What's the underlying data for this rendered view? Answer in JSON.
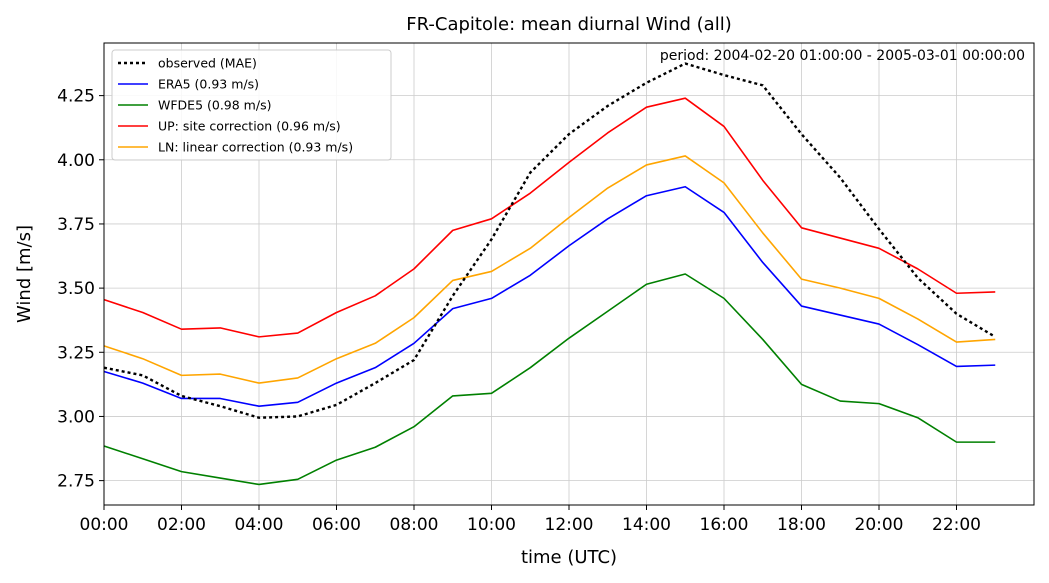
{
  "chart_data": {
    "type": "line",
    "title": "FR-Capitole: mean diurnal Wind (all)",
    "xlabel": "time (UTC)",
    "ylabel": "Wind [m/s]",
    "annotation": "period: 2004-02-20 01:00:00 - 2005-03-01 00:00:00",
    "x": [
      0,
      1,
      2,
      3,
      4,
      5,
      6,
      7,
      8,
      9,
      10,
      11,
      12,
      13,
      14,
      15,
      16,
      17,
      18,
      19,
      20,
      21,
      22,
      23
    ],
    "xlim": [
      0,
      24
    ],
    "ylim": [
      2.655,
      4.455
    ],
    "x_ticks": [
      0,
      2,
      4,
      6,
      8,
      10,
      12,
      14,
      16,
      18,
      20,
      22
    ],
    "x_tick_labels": [
      "00:00",
      "02:00",
      "04:00",
      "06:00",
      "08:00",
      "10:00",
      "12:00",
      "14:00",
      "16:00",
      "18:00",
      "20:00",
      "22:00"
    ],
    "y_ticks": [
      2.75,
      3.0,
      3.25,
      3.5,
      3.75,
      4.0,
      4.25
    ],
    "y_tick_labels": [
      "2.75",
      "3.00",
      "3.25",
      "3.50",
      "3.75",
      "4.00",
      "4.25"
    ],
    "grid": true,
    "legend_position": "top-left",
    "series": [
      {
        "name": "observed (MAE)",
        "color": "#000000",
        "style": "dotted",
        "values": [
          3.19,
          3.16,
          3.08,
          3.04,
          2.995,
          3.0,
          3.045,
          3.13,
          3.22,
          3.47,
          3.69,
          3.95,
          4.1,
          4.21,
          4.3,
          4.375,
          4.33,
          4.29,
          4.1,
          3.93,
          3.73,
          3.54,
          3.4,
          3.31
        ]
      },
      {
        "name": "ERA5 (0.93 m/s)",
        "color": "#0000ff",
        "style": "solid",
        "values": [
          3.175,
          3.13,
          3.07,
          3.07,
          3.04,
          3.055,
          3.13,
          3.19,
          3.285,
          3.42,
          3.46,
          3.55,
          3.665,
          3.77,
          3.86,
          3.895,
          3.795,
          3.6,
          3.43,
          3.395,
          3.36,
          3.28,
          3.195,
          3.2
        ]
      },
      {
        "name": "WFDE5 (0.98 m/s)",
        "color": "#008000",
        "style": "solid",
        "values": [
          2.885,
          2.835,
          2.785,
          2.76,
          2.735,
          2.755,
          2.83,
          2.88,
          2.96,
          3.08,
          3.09,
          3.19,
          3.305,
          3.41,
          3.515,
          3.555,
          3.46,
          3.3,
          3.125,
          3.06,
          3.05,
          2.995,
          2.9,
          2.9
        ]
      },
      {
        "name": "UP: site correction (0.96 m/s)",
        "color": "#ff0000",
        "style": "solid",
        "values": [
          3.455,
          3.405,
          3.34,
          3.345,
          3.31,
          3.325,
          3.405,
          3.47,
          3.575,
          3.725,
          3.77,
          3.87,
          3.99,
          4.105,
          4.205,
          4.24,
          4.13,
          3.92,
          3.735,
          3.695,
          3.655,
          3.575,
          3.48,
          3.485
        ]
      },
      {
        "name": "LN: linear correction (0.93 m/s)",
        "color": "#ffa500",
        "style": "solid",
        "values": [
          3.275,
          3.225,
          3.16,
          3.165,
          3.13,
          3.15,
          3.225,
          3.285,
          3.385,
          3.53,
          3.565,
          3.655,
          3.775,
          3.89,
          3.98,
          4.015,
          3.91,
          3.715,
          3.535,
          3.5,
          3.46,
          3.38,
          3.29,
          3.3
        ]
      }
    ]
  }
}
